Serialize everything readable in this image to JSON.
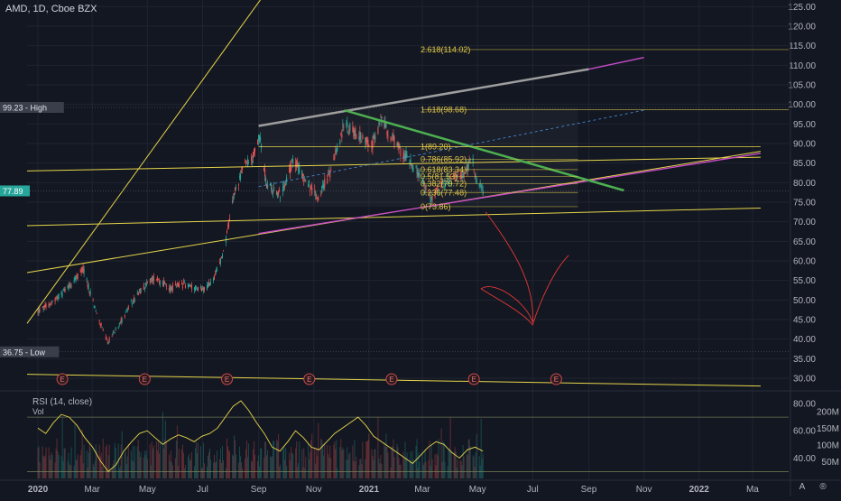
{
  "header": {
    "symbol_line": "AMD, 1D, Cboe BZX"
  },
  "colors": {
    "background": "#131722",
    "candle_up": "#26a69a",
    "candle_down": "#ef5350",
    "yellow_line": "#e6d54a",
    "green_line": "#4caf50",
    "grey_line": "#9e9e9e",
    "magenta_line": "#c74cc7",
    "blue_dash": "#4a90e2",
    "red_arrow": "#e53935",
    "rsi_line": "#e6d54a"
  },
  "chart_data": [
    {
      "type": "candlestick",
      "title": "AMD, 1D, Cboe BZX",
      "x_ticks": [
        "2020",
        "Mar",
        "May",
        "Jul",
        "Sep",
        "Nov",
        "2021",
        "Mar",
        "May",
        "Jul",
        "Sep",
        "Nov",
        "2022",
        "Ma"
      ],
      "y_ticks": [
        "125.00",
        "120.00",
        "115.00",
        "110.00",
        "105.00",
        "100.00",
        "95.00",
        "90.00",
        "85.00",
        "80.00",
        "75.00",
        "70.00",
        "65.00",
        "60.00",
        "55.00",
        "50.00",
        "45.00",
        "40.00",
        "35.00",
        "30.00"
      ],
      "ylim": [
        27,
        126
      ],
      "price_markers": [
        {
          "label": "99.23 - High",
          "value": 99.23
        },
        {
          "label": "77.89",
          "value": 77.89
        },
        {
          "label": "36.75 - Low",
          "value": 36.75
        }
      ],
      "fib_levels": [
        {
          "label": "2.618(114.02)",
          "value": 114.02
        },
        {
          "label": "1.618(98.68)",
          "value": 98.68
        },
        {
          "label": "1(89.20)",
          "value": 89.2
        },
        {
          "label": "0.786(85.92)",
          "value": 85.92
        },
        {
          "label": "0.618(83.34)",
          "value": 83.34
        },
        {
          "label": "0.5(81.53)",
          "value": 81.53
        },
        {
          "label": "0.382(79.72)",
          "value": 79.72
        },
        {
          "label": "0.236(77.48)",
          "value": 77.48
        },
        {
          "label": "0(73.86)",
          "value": 73.86
        }
      ],
      "earnings_marker": "E",
      "trend_price_path": [
        {
          "x": "2020-01-01",
          "y": 47
        },
        {
          "x": "2020-01-20",
          "y": 50
        },
        {
          "x": "2020-02-10",
          "y": 55
        },
        {
          "x": "2020-02-20",
          "y": 58
        },
        {
          "x": "2020-03-05",
          "y": 47
        },
        {
          "x": "2020-03-18",
          "y": 39
        },
        {
          "x": "2020-04-05",
          "y": 46
        },
        {
          "x": "2020-04-25",
          "y": 53
        },
        {
          "x": "2020-05-10",
          "y": 56
        },
        {
          "x": "2020-05-25",
          "y": 53
        },
        {
          "x": "2020-06-10",
          "y": 54
        },
        {
          "x": "2020-06-25",
          "y": 53
        },
        {
          "x": "2020-07-05",
          "y": 53
        },
        {
          "x": "2020-07-15",
          "y": 56
        },
        {
          "x": "2020-07-25",
          "y": 63
        },
        {
          "x": "2020-08-05",
          "y": 77
        },
        {
          "x": "2020-08-15",
          "y": 84
        },
        {
          "x": "2020-08-25",
          "y": 86
        },
        {
          "x": "2020-09-02",
          "y": 92
        },
        {
          "x": "2020-09-10",
          "y": 79
        },
        {
          "x": "2020-09-25",
          "y": 77
        },
        {
          "x": "2020-10-10",
          "y": 86
        },
        {
          "x": "2020-10-25",
          "y": 80
        },
        {
          "x": "2020-11-05",
          "y": 76
        },
        {
          "x": "2020-11-20",
          "y": 83
        },
        {
          "x": "2020-12-05",
          "y": 95
        },
        {
          "x": "2020-12-20",
          "y": 92
        },
        {
          "x": "2021-01-05",
          "y": 90
        },
        {
          "x": "2021-01-15",
          "y": 96
        },
        {
          "x": "2021-01-25",
          "y": 92
        },
        {
          "x": "2021-02-05",
          "y": 88
        },
        {
          "x": "2021-02-15",
          "y": 86
        },
        {
          "x": "2021-03-01",
          "y": 80
        },
        {
          "x": "2021-03-10",
          "y": 76
        },
        {
          "x": "2021-03-20",
          "y": 79
        },
        {
          "x": "2021-04-01",
          "y": 81
        },
        {
          "x": "2021-04-15",
          "y": 82
        },
        {
          "x": "2021-04-25",
          "y": 86
        },
        {
          "x": "2021-05-01",
          "y": 80
        },
        {
          "x": "2021-05-07",
          "y": 77.89
        }
      ]
    },
    {
      "type": "line",
      "title": "RSI (14, close)",
      "y_ticks": [
        "80.00",
        "60.00",
        "40.00"
      ],
      "ylim": [
        25,
        88
      ],
      "bands": [
        70,
        30
      ],
      "values": [
        62,
        58,
        66,
        72,
        70,
        64,
        55,
        48,
        38,
        30,
        35,
        45,
        52,
        58,
        60,
        55,
        50,
        54,
        57,
        55,
        52,
        56,
        58,
        62,
        70,
        78,
        82,
        75,
        66,
        58,
        48,
        45,
        52,
        60,
        55,
        48,
        46,
        52,
        58,
        62,
        66,
        70,
        64,
        56,
        52,
        48,
        44,
        40,
        36,
        42,
        48,
        52,
        50,
        44,
        40,
        46,
        48,
        45
      ]
    },
    {
      "type": "bar",
      "title": "Vol",
      "y_ticks": [
        "200M",
        "150M",
        "100M",
        "50M"
      ],
      "ylim": [
        0,
        230
      ]
    }
  ],
  "scale_buttons": {
    "auto": "A",
    "log": "®"
  }
}
